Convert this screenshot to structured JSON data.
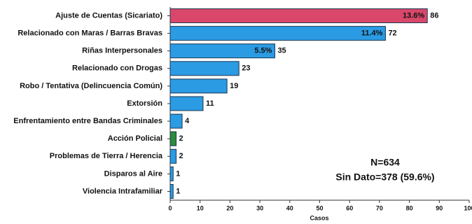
{
  "chart_data": {
    "type": "barh",
    "categories": [
      "Ajuste de Cuentas (Sicariato)",
      "Relacionado con Maras / Barras Bravas",
      "Riñas Interpersonales",
      "Relacionado con Drogas",
      "Robo / Tentativa (Delincuencia Común)",
      "Extorsión",
      "Enfrentamiento entre Bandas Criminales",
      "Acción Policial",
      "Problemas de Tierra / Herencia",
      "Disparos al Aire",
      "Violencia Intrafamiliar"
    ],
    "values": [
      86,
      72,
      35,
      23,
      19,
      11,
      4,
      2,
      2,
      1,
      1
    ],
    "percent_labels": [
      "13.6%",
      "11.4%",
      "5.5%",
      null,
      null,
      null,
      null,
      null,
      null,
      null,
      null
    ],
    "colors": [
      "#d9486a",
      "#2b9be3",
      "#2b9be3",
      "#2b9be3",
      "#2b9be3",
      "#2b9be3",
      "#2b9be3",
      "#2e8b3a",
      "#2b9be3",
      "#2b9be3",
      "#2b9be3"
    ],
    "xlabel": "Casos",
    "xlim": [
      0,
      100
    ],
    "xticks": [
      0,
      10,
      20,
      30,
      40,
      50,
      60,
      70,
      80,
      90,
      100
    ],
    "annotations": [
      "N=634",
      "Sin Dato=378 (59.6%)"
    ]
  }
}
